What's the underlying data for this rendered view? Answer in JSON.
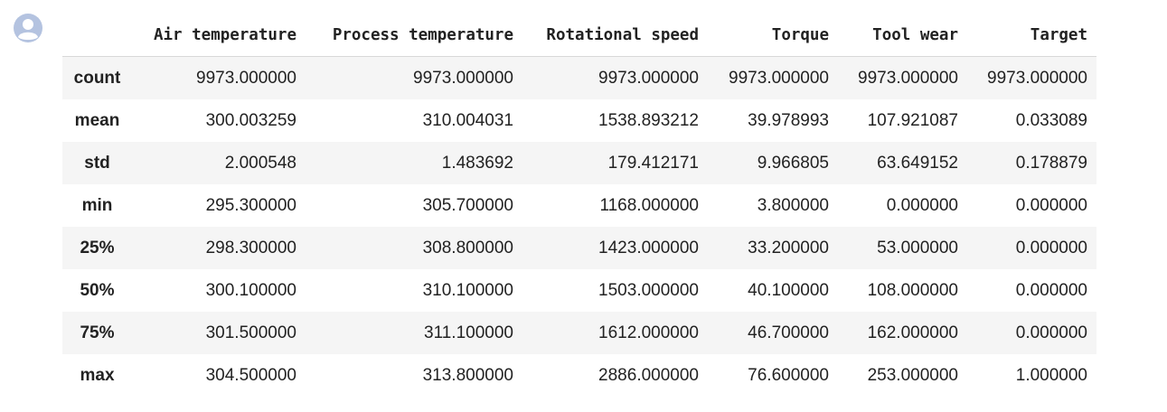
{
  "avatar": {
    "icon": "user-avatar-icon",
    "color": "#b4c3e0"
  },
  "table": {
    "index_header": "",
    "columns": [
      "Air temperature",
      "Process temperature",
      "Rotational speed",
      "Torque",
      "Tool wear",
      "Target"
    ],
    "rows": [
      {
        "label": "count",
        "values": [
          "9973.000000",
          "9973.000000",
          "9973.000000",
          "9973.000000",
          "9973.000000",
          "9973.000000"
        ]
      },
      {
        "label": "mean",
        "values": [
          "300.003259",
          "310.004031",
          "1538.893212",
          "39.978993",
          "107.921087",
          "0.033089"
        ]
      },
      {
        "label": "std",
        "values": [
          "2.000548",
          "1.483692",
          "179.412171",
          "9.966805",
          "63.649152",
          "0.178879"
        ]
      },
      {
        "label": "min",
        "values": [
          "295.300000",
          "305.700000",
          "1168.000000",
          "3.800000",
          "0.000000",
          "0.000000"
        ]
      },
      {
        "label": "25%",
        "values": [
          "298.300000",
          "308.800000",
          "1423.000000",
          "33.200000",
          "53.000000",
          "0.000000"
        ]
      },
      {
        "label": "50%",
        "values": [
          "300.100000",
          "310.100000",
          "1503.000000",
          "40.100000",
          "108.000000",
          "0.000000"
        ]
      },
      {
        "label": "75%",
        "values": [
          "301.500000",
          "311.100000",
          "1612.000000",
          "46.700000",
          "162.000000",
          "0.000000"
        ]
      },
      {
        "label": "max",
        "values": [
          "304.500000",
          "313.800000",
          "2886.000000",
          "76.600000",
          "253.000000",
          "1.000000"
        ]
      }
    ]
  },
  "colors": {
    "row_stripe": "#f5f5f5",
    "header_rule": "#d8d8d8",
    "text": "#222222"
  }
}
